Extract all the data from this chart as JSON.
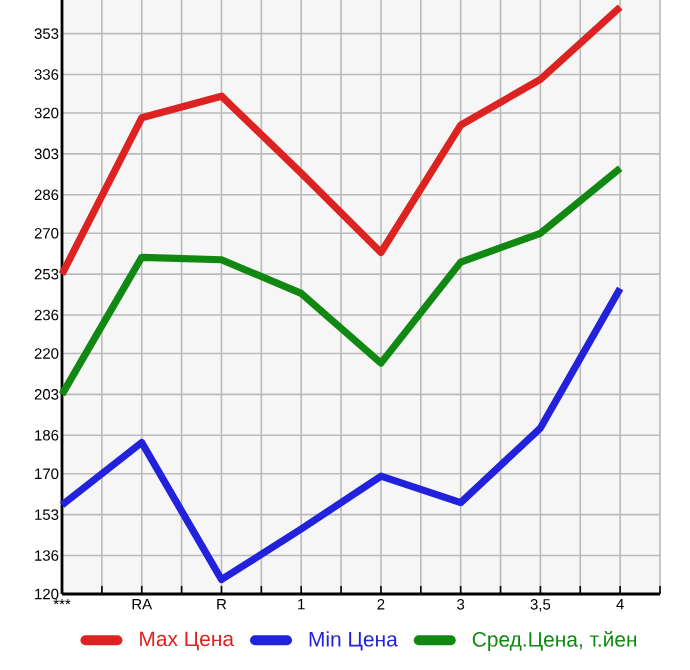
{
  "chart_data": {
    "type": "line",
    "categories": [
      "***",
      "RA",
      "R",
      "1",
      "2",
      "3",
      "3,5",
      "4"
    ],
    "series": [
      {
        "name": "Max Цена",
        "color": "#dd2222",
        "values": [
          253,
          318,
          327,
          295,
          262,
          315,
          334,
          364
        ]
      },
      {
        "name": "Min Цена",
        "color": "#2222dd",
        "values": [
          157,
          183,
          126,
          147,
          169,
          158,
          189,
          247
        ]
      },
      {
        "name": "Сред.Цена, т.йен",
        "color": "#118811",
        "values": [
          203,
          260,
          259,
          245,
          216,
          258,
          270,
          297
        ]
      }
    ],
    "ylim": [
      120,
      367
    ],
    "yticks": [
      120,
      136,
      153,
      170,
      186,
      203,
      220,
      236,
      253,
      270,
      286,
      303,
      320,
      336,
      353
    ],
    "grid": true,
    "legend": "bottom",
    "marker": "none",
    "line_style": "solid"
  }
}
